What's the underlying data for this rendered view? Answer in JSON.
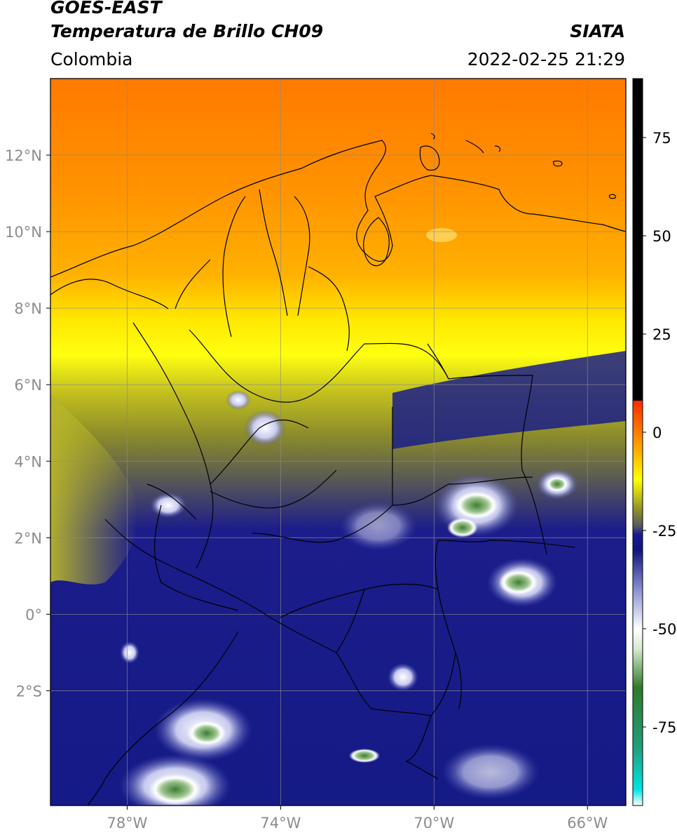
{
  "header": {
    "satellite": "GOES-EAST",
    "product": "Temperatura de Brillo CH09",
    "region": "Colombia",
    "source": "SIATA",
    "timestamp": "2022-02-25 21:29"
  },
  "map": {
    "lon_range": [
      -80,
      -65
    ],
    "lat_range": [
      -5,
      14
    ],
    "lat_labels": [
      "12°N",
      "10°N",
      "8°N",
      "6°N",
      "4°N",
      "2°N",
      "0°",
      "2°S"
    ],
    "lon_labels": [
      "78°W",
      "74°W",
      "70°W",
      "66°W"
    ],
    "grid": true
  },
  "colorbar": {
    "tick_labels": [
      "75",
      "50",
      "25",
      "0",
      "-25",
      "-50",
      "-75"
    ],
    "range": [
      -95,
      90
    ],
    "stops": [
      {
        "value": -95,
        "color": "#ffffff"
      },
      {
        "value": -91,
        "color": "#00e5e5"
      },
      {
        "value": -80,
        "color": "#1f9e7a"
      },
      {
        "value": -65,
        "color": "#2f7a2a"
      },
      {
        "value": -55,
        "color": "#d7eccf"
      },
      {
        "value": -50,
        "color": "#ffffff"
      },
      {
        "value": -40,
        "color": "#8a8fd0"
      },
      {
        "value": -30,
        "color": "#10157e"
      },
      {
        "value": -26,
        "color": "#1a1a90"
      },
      {
        "value": -24,
        "color": "#555566"
      },
      {
        "value": -20,
        "color": "#8c8c2a"
      },
      {
        "value": -12,
        "color": "#ffff00"
      },
      {
        "value": -4,
        "color": "#ffa500"
      },
      {
        "value": 8,
        "color": "#ff2a00"
      },
      {
        "value": 8.01,
        "color": "#000000"
      },
      {
        "value": 90,
        "color": "#000000"
      }
    ]
  }
}
